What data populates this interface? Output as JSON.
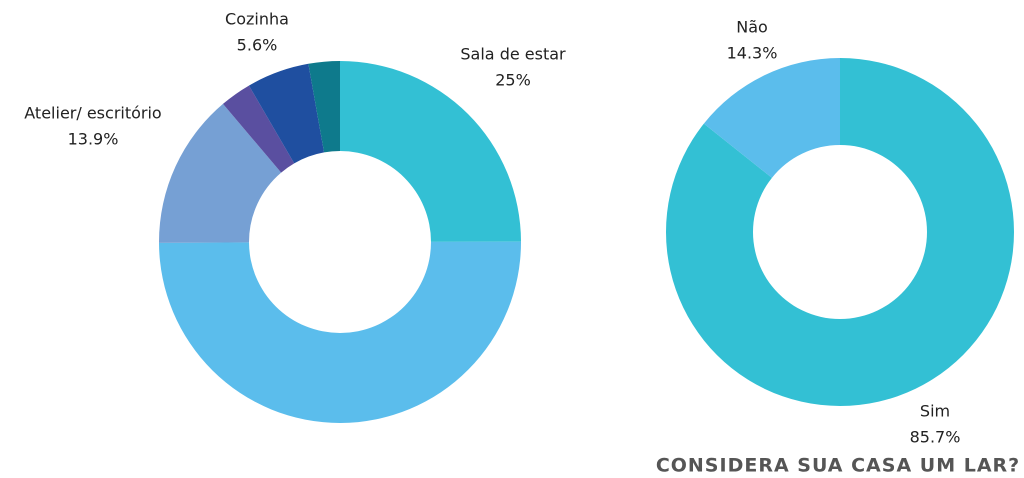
{
  "chart_data": [
    {
      "type": "donut",
      "categories": [
        "Sala de estar",
        null,
        "Atelier/ escritório",
        null,
        "Cozinha",
        null
      ],
      "values": [
        25,
        50,
        13.9,
        2.8,
        5.6,
        2.8
      ],
      "value_labels": [
        "25%",
        null,
        "13.9%",
        null,
        "5.6%",
        null
      ],
      "colors": [
        "#33c0d4",
        "#5bbdec",
        "#76a0d4",
        "#5a4fa0",
        "#1f4fa0",
        "#0e7a8c"
      ]
    },
    {
      "type": "donut",
      "title": "CONSIDERA SUA CASA UM LAR?",
      "categories": [
        "Sim",
        "Não"
      ],
      "values": [
        85.7,
        14.3
      ],
      "value_labels": [
        "85.7%",
        "14.3%"
      ],
      "colors": [
        "#33c0d4",
        "#5bbdec"
      ]
    }
  ]
}
